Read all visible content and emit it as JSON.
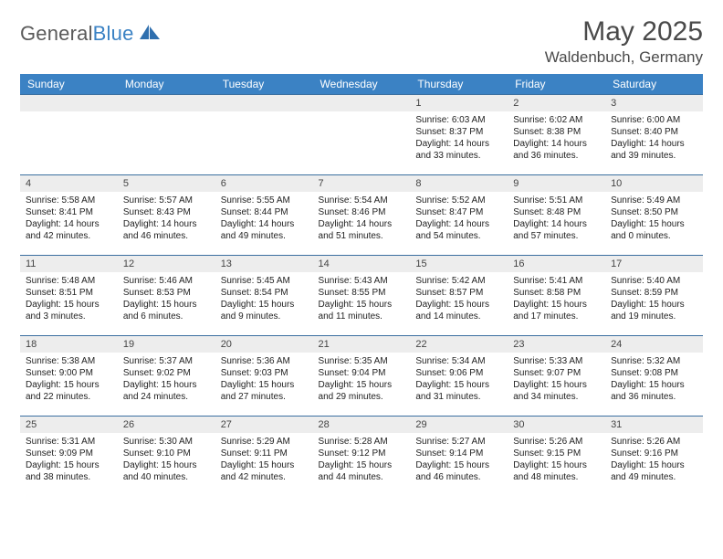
{
  "logo": {
    "textA": "General",
    "textB": "Blue"
  },
  "header": {
    "title": "May 2025",
    "location": "Waldenbuch, Germany"
  },
  "colors": {
    "headerBlue": "#3b82c4",
    "rowDivider": "#3b6fa0",
    "dayStripe": "#ededed",
    "text": "#222222",
    "logoGray": "#5a5a5a",
    "logoBlue": "#3b82c4",
    "background": "#ffffff"
  },
  "weekdays": [
    "Sunday",
    "Monday",
    "Tuesday",
    "Wednesday",
    "Thursday",
    "Friday",
    "Saturday"
  ],
  "firstWeekday": 4,
  "daysInMonth": 31,
  "days": {
    "1": {
      "sunrise": "6:03 AM",
      "sunset": "8:37 PM",
      "daylight": "14 hours and 33 minutes."
    },
    "2": {
      "sunrise": "6:02 AM",
      "sunset": "8:38 PM",
      "daylight": "14 hours and 36 minutes."
    },
    "3": {
      "sunrise": "6:00 AM",
      "sunset": "8:40 PM",
      "daylight": "14 hours and 39 minutes."
    },
    "4": {
      "sunrise": "5:58 AM",
      "sunset": "8:41 PM",
      "daylight": "14 hours and 42 minutes."
    },
    "5": {
      "sunrise": "5:57 AM",
      "sunset": "8:43 PM",
      "daylight": "14 hours and 46 minutes."
    },
    "6": {
      "sunrise": "5:55 AM",
      "sunset": "8:44 PM",
      "daylight": "14 hours and 49 minutes."
    },
    "7": {
      "sunrise": "5:54 AM",
      "sunset": "8:46 PM",
      "daylight": "14 hours and 51 minutes."
    },
    "8": {
      "sunrise": "5:52 AM",
      "sunset": "8:47 PM",
      "daylight": "14 hours and 54 minutes."
    },
    "9": {
      "sunrise": "5:51 AM",
      "sunset": "8:48 PM",
      "daylight": "14 hours and 57 minutes."
    },
    "10": {
      "sunrise": "5:49 AM",
      "sunset": "8:50 PM",
      "daylight": "15 hours and 0 minutes."
    },
    "11": {
      "sunrise": "5:48 AM",
      "sunset": "8:51 PM",
      "daylight": "15 hours and 3 minutes."
    },
    "12": {
      "sunrise": "5:46 AM",
      "sunset": "8:53 PM",
      "daylight": "15 hours and 6 minutes."
    },
    "13": {
      "sunrise": "5:45 AM",
      "sunset": "8:54 PM",
      "daylight": "15 hours and 9 minutes."
    },
    "14": {
      "sunrise": "5:43 AM",
      "sunset": "8:55 PM",
      "daylight": "15 hours and 11 minutes."
    },
    "15": {
      "sunrise": "5:42 AM",
      "sunset": "8:57 PM",
      "daylight": "15 hours and 14 minutes."
    },
    "16": {
      "sunrise": "5:41 AM",
      "sunset": "8:58 PM",
      "daylight": "15 hours and 17 minutes."
    },
    "17": {
      "sunrise": "5:40 AM",
      "sunset": "8:59 PM",
      "daylight": "15 hours and 19 minutes."
    },
    "18": {
      "sunrise": "5:38 AM",
      "sunset": "9:00 PM",
      "daylight": "15 hours and 22 minutes."
    },
    "19": {
      "sunrise": "5:37 AM",
      "sunset": "9:02 PM",
      "daylight": "15 hours and 24 minutes."
    },
    "20": {
      "sunrise": "5:36 AM",
      "sunset": "9:03 PM",
      "daylight": "15 hours and 27 minutes."
    },
    "21": {
      "sunrise": "5:35 AM",
      "sunset": "9:04 PM",
      "daylight": "15 hours and 29 minutes."
    },
    "22": {
      "sunrise": "5:34 AM",
      "sunset": "9:06 PM",
      "daylight": "15 hours and 31 minutes."
    },
    "23": {
      "sunrise": "5:33 AM",
      "sunset": "9:07 PM",
      "daylight": "15 hours and 34 minutes."
    },
    "24": {
      "sunrise": "5:32 AM",
      "sunset": "9:08 PM",
      "daylight": "15 hours and 36 minutes."
    },
    "25": {
      "sunrise": "5:31 AM",
      "sunset": "9:09 PM",
      "daylight": "15 hours and 38 minutes."
    },
    "26": {
      "sunrise": "5:30 AM",
      "sunset": "9:10 PM",
      "daylight": "15 hours and 40 minutes."
    },
    "27": {
      "sunrise": "5:29 AM",
      "sunset": "9:11 PM",
      "daylight": "15 hours and 42 minutes."
    },
    "28": {
      "sunrise": "5:28 AM",
      "sunset": "9:12 PM",
      "daylight": "15 hours and 44 minutes."
    },
    "29": {
      "sunrise": "5:27 AM",
      "sunset": "9:14 PM",
      "daylight": "15 hours and 46 minutes."
    },
    "30": {
      "sunrise": "5:26 AM",
      "sunset": "9:15 PM",
      "daylight": "15 hours and 48 minutes."
    },
    "31": {
      "sunrise": "5:26 AM",
      "sunset": "9:16 PM",
      "daylight": "15 hours and 49 minutes."
    }
  },
  "labels": {
    "sunrise": "Sunrise:",
    "sunset": "Sunset:",
    "daylight": "Daylight:"
  }
}
